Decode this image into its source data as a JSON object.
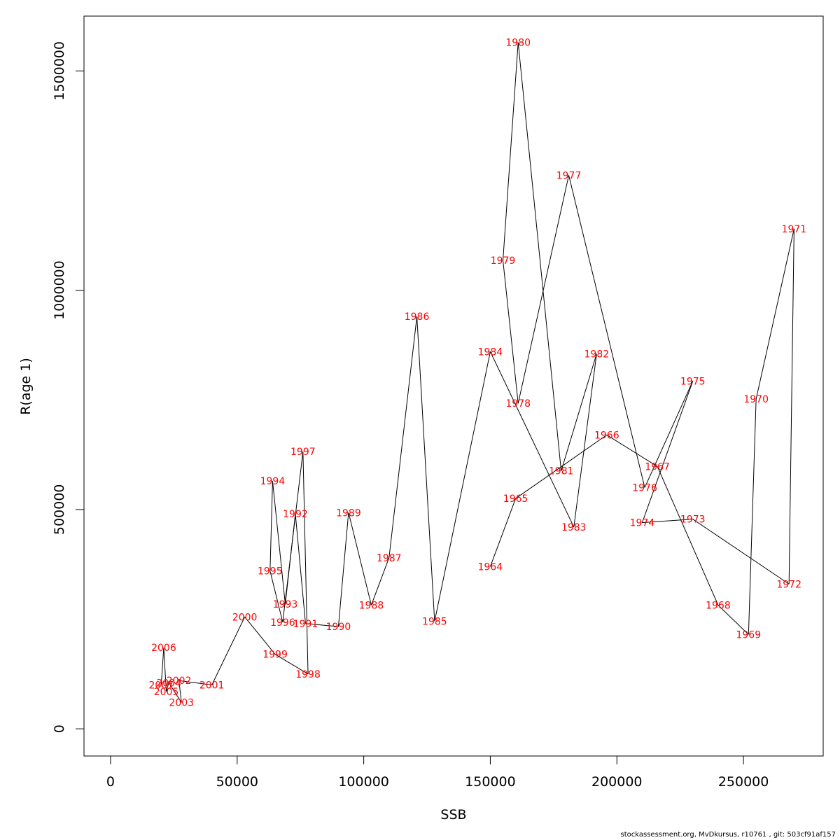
{
  "chart_data": {
    "type": "line",
    "xlabel": "SSB",
    "ylabel": "R(age 1)",
    "xlim": [
      -10500,
      281500
    ],
    "ylim": [
      -62000,
      1625000
    ],
    "x_ticks": [
      0,
      50000,
      100000,
      150000,
      200000,
      250000
    ],
    "x_tick_labels": [
      "0",
      "50000",
      "100000",
      "150000",
      "200000",
      "250000"
    ],
    "y_ticks": [
      0,
      500000,
      1000000,
      1500000
    ],
    "y_tick_labels": [
      "0",
      "500000",
      "1000000",
      "1500000"
    ],
    "grid": false,
    "colors": {
      "line": "#000000",
      "labels": "#ff0000"
    },
    "series": [
      {
        "points": [
          {
            "year": "1964",
            "x": 150000,
            "y": 370000
          },
          {
            "year": "1965",
            "x": 160000,
            "y": 525000
          },
          {
            "year": "1966",
            "x": 196000,
            "y": 670000
          },
          {
            "year": "1967",
            "x": 216000,
            "y": 598000
          },
          {
            "year": "1968",
            "x": 240000,
            "y": 282000
          },
          {
            "year": "1969",
            "x": 252000,
            "y": 215000
          },
          {
            "year": "1970",
            "x": 255000,
            "y": 752000
          },
          {
            "year": "1971",
            "x": 270000,
            "y": 1140000
          },
          {
            "year": "1972",
            "x": 268000,
            "y": 330000
          },
          {
            "year": "1973",
            "x": 230000,
            "y": 478000
          },
          {
            "year": "1974",
            "x": 210000,
            "y": 470000
          },
          {
            "year": "1975",
            "x": 230000,
            "y": 793000
          },
          {
            "year": "1976",
            "x": 211000,
            "y": 550000
          },
          {
            "year": "1977",
            "x": 181000,
            "y": 1262000
          },
          {
            "year": "1978",
            "x": 161000,
            "y": 742000
          },
          {
            "year": "1979",
            "x": 155000,
            "y": 1068000
          },
          {
            "year": "1980",
            "x": 161000,
            "y": 1565000
          },
          {
            "year": "1981",
            "x": 178000,
            "y": 588000
          },
          {
            "year": "1982",
            "x": 192000,
            "y": 855000
          },
          {
            "year": "1983",
            "x": 183000,
            "y": 460000
          },
          {
            "year": "1984",
            "x": 150000,
            "y": 860000
          },
          {
            "year": "1985",
            "x": 128000,
            "y": 245000
          },
          {
            "year": "1986",
            "x": 121000,
            "y": 940000
          },
          {
            "year": "1987",
            "x": 110000,
            "y": 390000
          },
          {
            "year": "1988",
            "x": 103000,
            "y": 282000
          },
          {
            "year": "1989",
            "x": 94000,
            "y": 493000
          },
          {
            "year": "1990",
            "x": 90000,
            "y": 233000
          },
          {
            "year": "1991",
            "x": 77000,
            "y": 240000
          },
          {
            "year": "1992",
            "x": 73000,
            "y": 490000
          },
          {
            "year": "1993",
            "x": 69000,
            "y": 284000
          },
          {
            "year": "1994",
            "x": 64000,
            "y": 565000
          },
          {
            "year": "1995",
            "x": 63000,
            "y": 360000
          },
          {
            "year": "1996",
            "x": 68000,
            "y": 243000
          },
          {
            "year": "1997",
            "x": 76000,
            "y": 632000
          },
          {
            "year": "1998",
            "x": 78000,
            "y": 125000
          },
          {
            "year": "1999",
            "x": 65000,
            "y": 170000
          },
          {
            "year": "2000",
            "x": 53000,
            "y": 255000
          },
          {
            "year": "2001",
            "x": 40000,
            "y": 100000
          },
          {
            "year": "2002",
            "x": 27000,
            "y": 110000
          },
          {
            "year": "2003",
            "x": 28000,
            "y": 60000
          },
          {
            "year": "2004",
            "x": 23000,
            "y": 105000
          },
          {
            "year": "2005",
            "x": 22000,
            "y": 85000
          },
          {
            "year": "2006",
            "x": 21000,
            "y": 185000
          },
          {
            "year": "2007",
            "x": 20000,
            "y": 100000
          }
        ]
      }
    ]
  },
  "footer": {
    "text": "stockassessment.org, MvDkursus, r10761 , git: 503cf91af157"
  }
}
